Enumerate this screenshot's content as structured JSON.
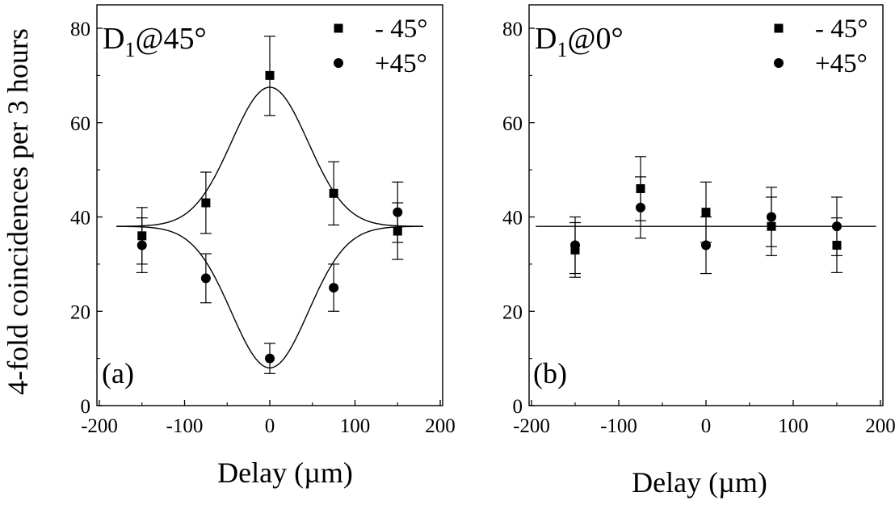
{
  "ylabel": "4-fold coincidences per 3 hours",
  "chart_data": [
    {
      "type": "scatter",
      "panel_label": "(a)",
      "title_main": "D",
      "title_sub": "1",
      "title_rest": "@45°",
      "xlabel": "Delay (µm)",
      "xlim": [
        -200,
        200
      ],
      "ylim": [
        0,
        80
      ],
      "xticks": [
        "-200",
        "-100",
        "0",
        "100",
        "200"
      ],
      "yticks": [
        "0",
        "20",
        "40",
        "60",
        "80"
      ],
      "legend_position": "top-right",
      "grid": false,
      "series": [
        {
          "name": "- 45°",
          "marker": "square",
          "x": [
            -150,
            -75,
            0,
            75,
            150
          ],
          "y": [
            36,
            43,
            70,
            45,
            37
          ],
          "err_lo": [
            6,
            6.5,
            8.5,
            6.7,
            6
          ],
          "err_hi": [
            6,
            6.5,
            8.3,
            6.7,
            6
          ]
        },
        {
          "name": "+45°",
          "marker": "circle",
          "x": [
            -150,
            -75,
            0,
            75,
            150
          ],
          "y": [
            34,
            27,
            10,
            25,
            41
          ],
          "err_lo": [
            5.8,
            5.2,
            3.2,
            5,
            6.4
          ],
          "err_hi": [
            5.8,
            5.2,
            3.2,
            5,
            6.4
          ]
        }
      ],
      "fits": [
        {
          "type": "gaussian",
          "baseline": 38,
          "amplitude": 29.5,
          "sigma": 45,
          "x_range": [
            -180,
            180
          ]
        },
        {
          "type": "gaussian",
          "baseline": 38,
          "amplitude": -30,
          "sigma": 45,
          "x_range": [
            -180,
            180
          ]
        }
      ]
    },
    {
      "type": "scatter",
      "panel_label": "(b)",
      "title_main": "D",
      "title_sub": "1",
      "title_rest": "@0°",
      "xlabel": "Delay (µm)",
      "xlim": [
        -200,
        200
      ],
      "ylim": [
        0,
        80
      ],
      "xticks": [
        "-200",
        "-100",
        "0",
        "100",
        "200"
      ],
      "yticks": [
        "0",
        "20",
        "40",
        "60",
        "80"
      ],
      "legend_position": "top-right",
      "grid": false,
      "series": [
        {
          "name": "- 45°",
          "marker": "square",
          "x": [
            -150,
            -75,
            0,
            75,
            150
          ],
          "y": [
            33,
            46,
            41,
            38,
            34
          ],
          "err_lo": [
            5.8,
            6.8,
            6.4,
            6.2,
            5.8
          ],
          "err_hi": [
            5.8,
            6.8,
            6.4,
            6.2,
            5.8
          ]
        },
        {
          "name": "+45°",
          "marker": "circle",
          "x": [
            -150,
            -75,
            0,
            75,
            150
          ],
          "y": [
            34,
            42,
            34,
            40,
            38
          ],
          "err_lo": [
            6,
            6.5,
            6,
            6.3,
            6.2
          ],
          "err_hi": [
            6,
            6.5,
            6,
            6.3,
            6.2
          ]
        }
      ],
      "fits": [
        {
          "type": "constant",
          "baseline": 38,
          "x_range": [
            -195,
            195
          ]
        }
      ]
    }
  ]
}
